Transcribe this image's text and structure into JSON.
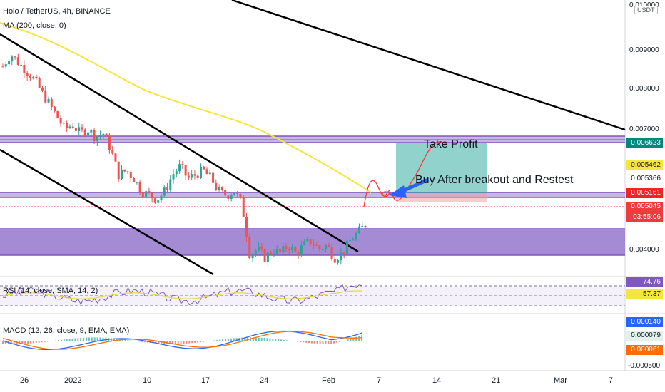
{
  "header": {
    "symbol_line": "Holo / TetherUS, 4h, BINANCE",
    "ma_line": "MA (200, close, 0)",
    "rsi_line": "RSI (14, close, SMA, 14, 2)",
    "macd_line": "MACD (12, 26, close, 9, EMA, EMA)",
    "currency": "USDT"
  },
  "colors": {
    "price_zone": "#7e57c2",
    "ma": "#f5e63b",
    "trendline": "#000000",
    "target_box": "#26a69a",
    "projection": "#ef3b3b",
    "arrow": "#2962ff",
    "up_candle": "#26a69a",
    "down_candle": "#ef5350"
  },
  "annotations": {
    "take_profit": "Take Profit",
    "buy_note": "Buy After breakout and Restest"
  },
  "price_axis": {
    "ticks": [
      "0.009000",
      "0.008000",
      "0.007000",
      "0.004000"
    ],
    "top_partial": "0.010000"
  },
  "price_badges": [
    {
      "value": "0.006623",
      "bg": "#00897b",
      "fg": "#ffffff"
    },
    {
      "value": "0.005462",
      "bg": "#f5e63b",
      "fg": "#131722"
    },
    {
      "value": "0.005366",
      "bg": "#ffffff",
      "fg": "#131722"
    },
    {
      "value": "0.005161",
      "bg": "#ef2525",
      "fg": "#ffffff"
    },
    {
      "value": "0.005045",
      "bg": "#ef3b3b",
      "fg": "#ffffff"
    },
    {
      "value": "03:55:06",
      "bg": "#ef3b3b",
      "fg": "#ffffff"
    }
  ],
  "rsi_badges": [
    {
      "value": "74.76",
      "bg": "#7e57c2",
      "fg": "#ffffff"
    },
    {
      "value": "57.37",
      "bg": "#f5e63b",
      "fg": "#131722"
    }
  ],
  "macd_badges": [
    {
      "value": "0.000140",
      "bg": "#2962ff",
      "fg": "#ffffff"
    },
    {
      "value": "0.000079",
      "bg": "#e0f2e9",
      "fg": "#131722"
    },
    {
      "value": "0.000061",
      "bg": "#ff6d00",
      "fg": "#ffffff"
    }
  ],
  "macd_axis": {
    "bottom_partial": "-0.000500"
  },
  "time_axis": [
    "26",
    "2022",
    "10",
    "17",
    "24",
    "Feb",
    "7",
    "14",
    "21",
    "Mar",
    "7"
  ],
  "chart_data": {
    "type": "candlestick",
    "title": "Holo / TetherUS, 4h, BINANCE",
    "price_range": [
      0.0038,
      0.0104
    ],
    "zones": [
      {
        "low": 0.00661,
        "high": 0.00675
      },
      {
        "low": 0.00511,
        "high": 0.00521
      },
      {
        "low": 0.0039,
        "high": 0.00455
      }
    ],
    "target_box": {
      "low": 0.00508,
      "high": 0.00661
    },
    "close_series": [
      0.0088,
      0.0091,
      0.0089,
      0.0087,
      0.0085,
      0.0082,
      0.0079,
      0.0076,
      0.0073,
      0.0074,
      0.0072,
      0.0073,
      0.0071,
      0.0072,
      0.0068,
      0.0062,
      0.0063,
      0.0061,
      0.0058,
      0.0057,
      0.0056,
      0.0058,
      0.0062,
      0.0064,
      0.0061,
      0.0062,
      0.0063,
      0.0061,
      0.0058,
      0.0057,
      0.0058,
      0.0055,
      0.0043,
      0.0044,
      0.0042,
      0.0044,
      0.0043,
      0.0045,
      0.0043,
      0.0045,
      0.0046,
      0.0044,
      0.0045,
      0.0042,
      0.0043,
      0.0046,
      0.0048,
      0.005
    ],
    "ma200": [
      0.0092,
      0.0086,
      0.0081,
      0.0078,
      0.0074,
      0.0071,
      0.0066,
      0.0061,
      0.0057,
      0.0054
    ],
    "rsi": {
      "levels": [
        70,
        50,
        30
      ],
      "last": 74.76,
      "signal": 57.37
    },
    "macd": {
      "macd": 0.00014,
      "signal": 7.9e-05,
      "histogram": 6.1e-05
    }
  }
}
